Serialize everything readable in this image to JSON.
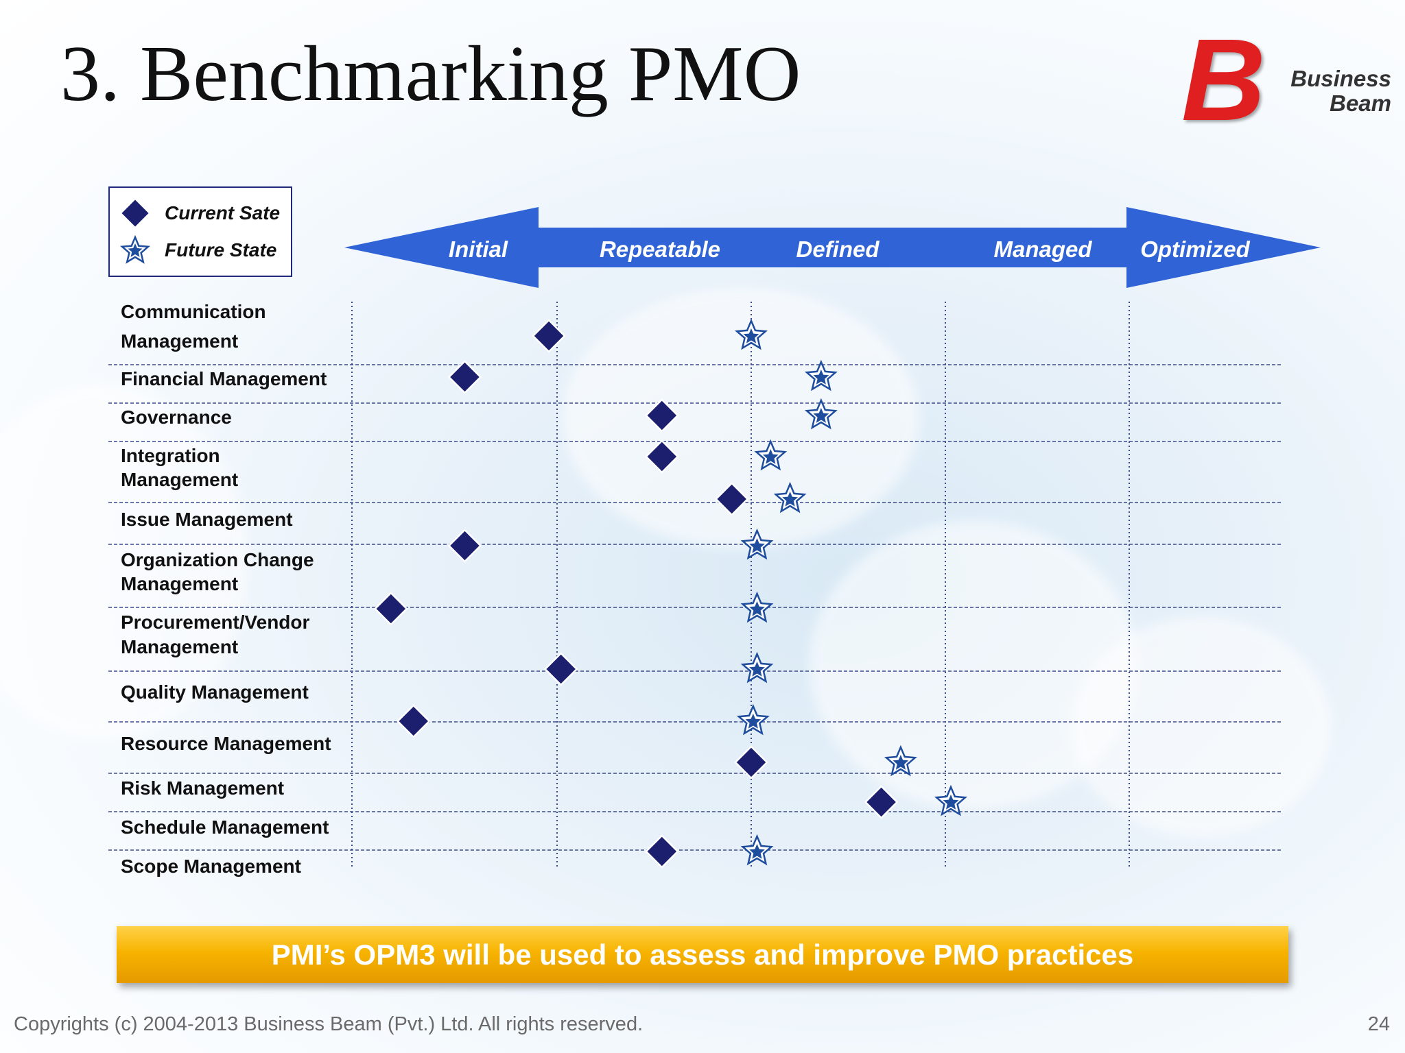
{
  "slide": {
    "title": "3. Benchmarking PMO",
    "logo": {
      "line1": "Business",
      "line2": "Beam"
    },
    "banner": "PMI’s OPM3 will be used to assess and improve PMO practices",
    "footer": "Copyrights (c) 2004-2013 Business Beam (Pvt.) Ltd. All rights reserved.",
    "page_number": "24"
  },
  "colors": {
    "marker": "#1b1f6e",
    "arrow": "#2f63d6",
    "grid": "#3b4a8a",
    "banner": "#f7b300"
  },
  "chart_data": {
    "type": "scatter",
    "legend": [
      {
        "name": "Current Sate",
        "marker": "diamond"
      },
      {
        "name": "Future State",
        "marker": "star"
      }
    ],
    "legend_position": "top-left",
    "stages": [
      "Initial",
      "Repeatable",
      "Defined",
      "Managed",
      "Optimized"
    ],
    "x_scale": "maturity stage (0 = left edge of Initial, 5 = right edge of Optimized)",
    "xlim": [
      0,
      5
    ],
    "categories": [
      "Communication Management",
      "Financial Management",
      "Governance",
      "Integration Management",
      "Issue Management",
      "Organization Change Management",
      "Procurement/Vendor Management",
      "Quality Management",
      "Resource Management",
      "Risk Management",
      "Schedule Management",
      "Scope Management"
    ],
    "category_labels": [
      [
        "Communication",
        "Management"
      ],
      [
        "Financial Management"
      ],
      [
        "Governance"
      ],
      [
        "Integration",
        "Management"
      ],
      [
        "Issue Management"
      ],
      [
        "Organization Change",
        "Management"
      ],
      [
        "Procurement/Vendor",
        "Management"
      ],
      [
        "Quality Management"
      ],
      [
        "Resource Management"
      ],
      [
        "Risk Management"
      ],
      [
        "Schedule Management"
      ],
      [
        "Scope Management"
      ]
    ],
    "series": [
      {
        "name": "Current Sate",
        "marker": "diamond",
        "points": [
          {
            "x": 0.96,
            "row": 0.0
          },
          {
            "x": 0.55,
            "row": 1.0
          },
          {
            "x": 1.54,
            "row": 2.0
          },
          {
            "x": 1.54,
            "row": 3.0
          },
          {
            "x": 1.9,
            "row": 4.0
          },
          {
            "x": 0.55,
            "row": 5.0
          },
          {
            "x": 0.19,
            "row": 6.0
          },
          {
            "x": 1.02,
            "row": 7.0
          },
          {
            "x": 0.3,
            "row": 8.0
          },
          {
            "x": 2.0,
            "row": 9.0
          },
          {
            "x": 2.67,
            "row": 10.0
          },
          {
            "x": 1.54,
            "row": 11.0
          }
        ]
      },
      {
        "name": "Future State",
        "marker": "star",
        "points": [
          {
            "x": 2.0,
            "row": 0.0
          },
          {
            "x": 2.36,
            "row": 1.0
          },
          {
            "x": 2.36,
            "row": 2.0
          },
          {
            "x": 2.1,
            "row": 3.0
          },
          {
            "x": 2.2,
            "row": 4.0
          },
          {
            "x": 2.03,
            "row": 5.0
          },
          {
            "x": 2.03,
            "row": 6.0
          },
          {
            "x": 2.03,
            "row": 7.0
          },
          {
            "x": 2.01,
            "row": 8.0
          },
          {
            "x": 2.77,
            "row": 9.0
          },
          {
            "x": 3.03,
            "row": 10.0
          },
          {
            "x": 2.03,
            "row": 11.0
          }
        ]
      }
    ]
  }
}
